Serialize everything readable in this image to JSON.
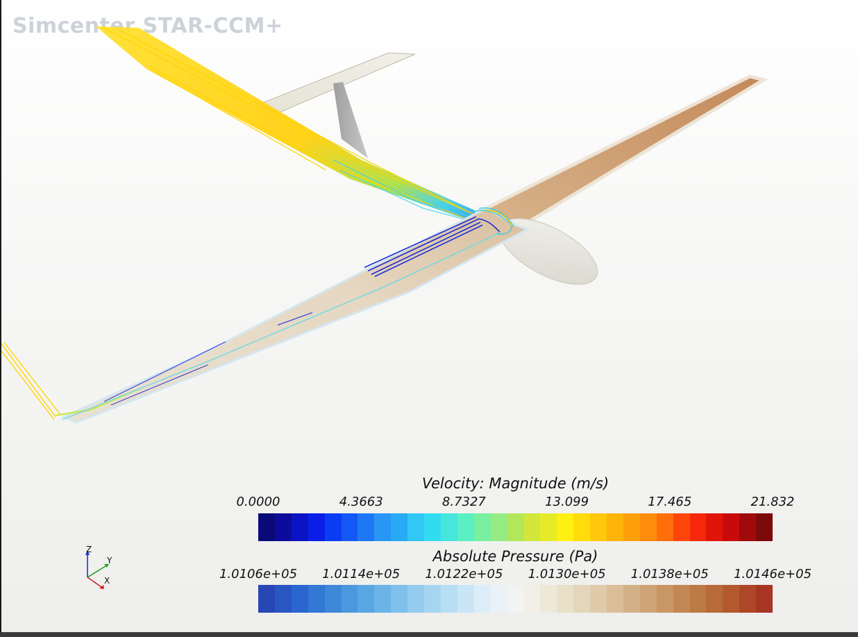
{
  "app": {
    "title": "Simcenter STAR-CCM+"
  },
  "scene": {
    "object": "glider-model",
    "colors": {
      "streamline_low": "#1b2bd6",
      "streamline_mid": "#3fd0e0",
      "streamline_high": "#ffd21a",
      "wing_pressure_low": "#e4ddd0",
      "wing_pressure_high": "#c58a58",
      "fuselage": "#e9e7de",
      "fin": "#a8a8a8"
    }
  },
  "legends": {
    "velocity": {
      "title": "Velocity: Magnitude (m/s)",
      "ticks": [
        "0.0000",
        "4.3663",
        "8.7327",
        "13.099",
        "17.465",
        "21.832"
      ],
      "range": [
        0.0,
        21.832
      ],
      "colors": [
        "#0a0a78",
        "#0c0c9c",
        "#0a14c4",
        "#0a1ee8",
        "#0a3cf5",
        "#1458f5",
        "#1e78f5",
        "#2896f5",
        "#28aaf5",
        "#32c8f5",
        "#32dcf0",
        "#46e6dc",
        "#5af0c3",
        "#78f0a0",
        "#96eb82",
        "#b4e65a",
        "#d2e63c",
        "#e6eb28",
        "#fff014",
        "#ffdc0a",
        "#ffc80a",
        "#ffb40a",
        "#ffa00a",
        "#ff8c0a",
        "#ff6e0a",
        "#ff460a",
        "#f5280a",
        "#e1140a",
        "#c80a0a",
        "#a00a0a",
        "#7d0a0a"
      ]
    },
    "pressure": {
      "title": "Absolute Pressure (Pa)",
      "ticks": [
        "1.0106e+05",
        "1.0114e+05",
        "1.0122e+05",
        "1.0130e+05",
        "1.0138e+05",
        "1.0146e+05"
      ],
      "range": [
        101060,
        101460
      ],
      "colors": [
        "#2846b4",
        "#2856c3",
        "#2a66cd",
        "#3278d4",
        "#3e88da",
        "#4c98de",
        "#5aa6e3",
        "#6cb4e8",
        "#80c0ec",
        "#94cbef",
        "#a6d5f2",
        "#b8def4",
        "#cae6f6",
        "#dcedf8",
        "#eaf2f8",
        "#f2f3f3",
        "#f2efe6",
        "#eee8d9",
        "#e9e0ca",
        "#e4d6bb",
        "#dfcbaa",
        "#d9be98",
        "#d3b186",
        "#cea476",
        "#c89764",
        "#c28853",
        "#bc7a45",
        "#b86a38",
        "#b4592e",
        "#ae4628",
        "#a83424"
      ]
    }
  },
  "triad": {
    "labels": {
      "z": "Z",
      "y": "Y",
      "x": "X"
    },
    "colors": {
      "z": "#2030d0",
      "y": "#20a020",
      "x": "#d02020"
    }
  }
}
